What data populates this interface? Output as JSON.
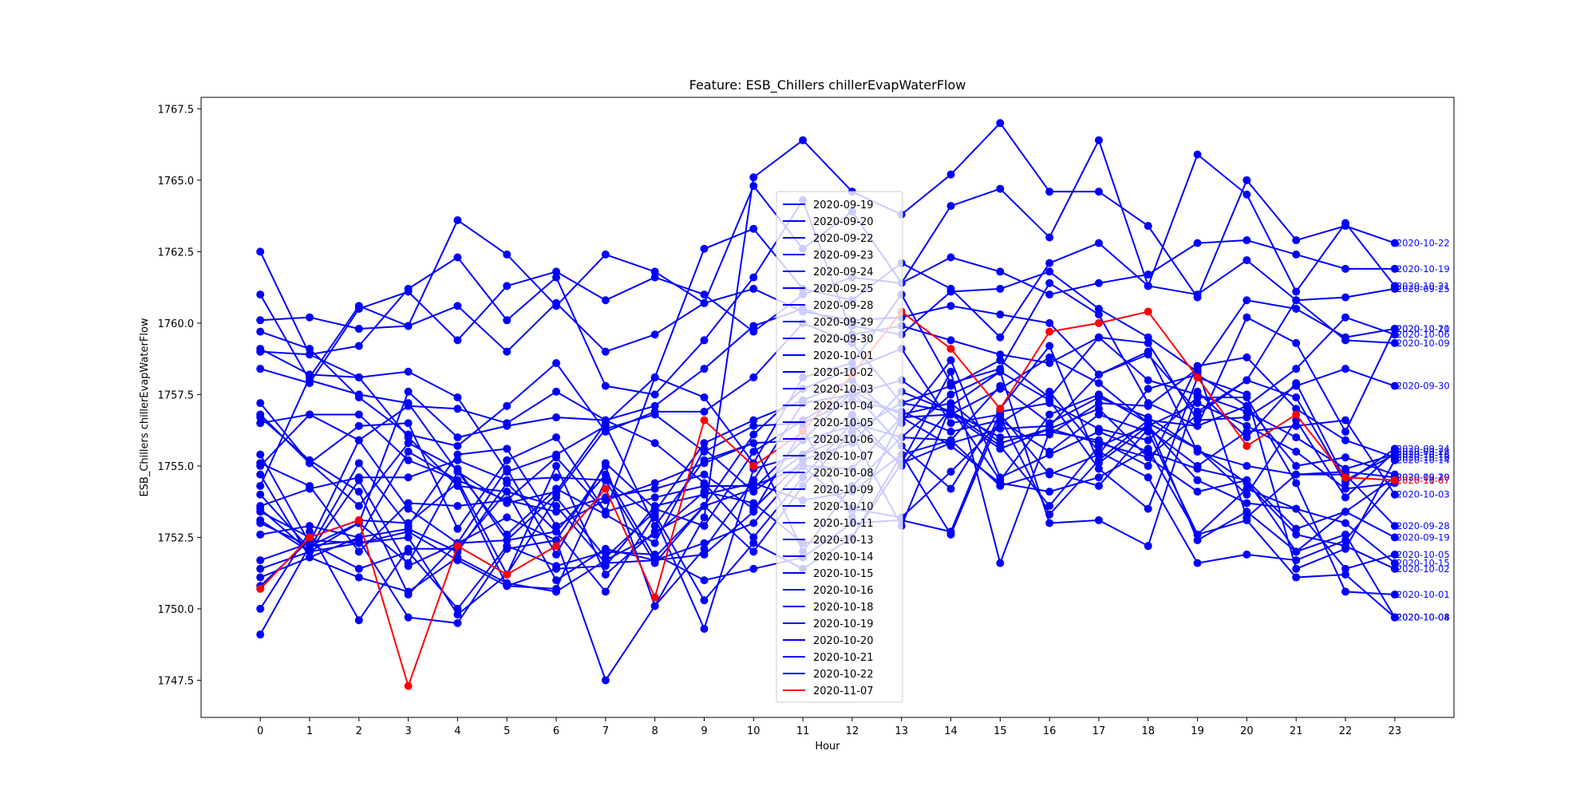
{
  "chart_data": {
    "type": "line",
    "title": "Feature: ESB_Chillers chillerEvapWaterFlow",
    "xlabel": "Hour",
    "ylabel": "ESB_Chillers chillerEvapWaterFlow",
    "x": [
      0,
      1,
      2,
      3,
      4,
      5,
      6,
      7,
      8,
      9,
      10,
      11,
      12,
      13,
      14,
      15,
      16,
      17,
      18,
      19,
      20,
      21,
      22,
      23
    ],
    "xlim": [
      -1.2,
      24.2
    ],
    "ylim": [
      1746.2,
      1767.9
    ],
    "yticks": [
      1747.5,
      1750.0,
      1752.5,
      1755.0,
      1757.5,
      1760.0,
      1762.5,
      1765.0,
      1767.5
    ],
    "ytick_labels": [
      "1747.5",
      "1750.0",
      "1752.5",
      "1755.0",
      "1757.5",
      "1760.0",
      "1762.5",
      "1765.0",
      "1767.5"
    ],
    "grid": false,
    "legend_position": "center",
    "series": [
      {
        "name": "2020-09-19",
        "color": "#0000ff",
        "values": [
          1753.0,
          1752.2,
          1753.0,
          1751.6,
          1754.8,
          1752.6,
          1754.2,
          1753.3,
          1752.3,
          1755.6,
          1754.1,
          1755.4,
          1756.8,
          1755.0,
          1757.0,
          1754.5,
          1756.8,
          1757.5,
          1756.5,
          1752.4,
          1753.4,
          1752.0,
          1753.4,
          1752.5
        ]
      },
      {
        "name": "2020-09-20",
        "color": "#0000ff",
        "values": [
          1753.5,
          1752.0,
          1754.5,
          1751.5,
          1752.3,
          1754.9,
          1751.9,
          1755.1,
          1753.5,
          1752.9,
          1755.5,
          1756.6,
          1757.6,
          1755.7,
          1754.2,
          1757.0,
          1759.2,
          1755.1,
          1756.4,
          1757.2,
          1756.4,
          1755.5,
          1754.2,
          1754.4
        ]
      },
      {
        "name": "2020-09-22",
        "color": "#0000ff",
        "values": [
          1755.4,
          1752.3,
          1755.9,
          1753.5,
          1752.3,
          1753.2,
          1752.4,
          1755.0,
          1750.1,
          1752.1,
          1754.5,
          1757.2,
          1757.5,
          1758.0,
          1756.8,
          1757.7,
          1758.8,
          1757.9,
          1756.5,
          1755.6,
          1754.0,
          1756.6,
          1753.9,
          1755.5
        ]
      },
      {
        "name": "2020-09-23",
        "color": "#0000ff",
        "values": [
          1753.4,
          1752.5,
          1753.1,
          1753.0,
          1754.4,
          1750.8,
          1750.7,
          1754.5,
          1751.6,
          1753.6,
          1756.1,
          1757.7,
          1758.4,
          1759.1,
          1756.5,
          1756.8,
          1754.7,
          1755.4,
          1757.7,
          1758.2,
          1757.1,
          1755.0,
          1755.3,
          1754.7
        ]
      },
      {
        "name": "2020-09-24",
        "color": "#0000ff",
        "values": [
          1754.0,
          1752.1,
          1755.1,
          1752.9,
          1755.4,
          1755.6,
          1752.9,
          1753.8,
          1754.4,
          1755.1,
          1755.8,
          1755.9,
          1757.6,
          1756.8,
          1757.2,
          1755.8,
          1756.3,
          1757.0,
          1755.3,
          1756.8,
          1758.0,
          1757.4,
          1754.4,
          1755.6
        ]
      },
      {
        "name": "2020-09-25",
        "color": "#0000ff",
        "values": [
          1761.0,
          1758.0,
          1757.5,
          1757.2,
          1754.8,
          1753.7,
          1754.1,
          1756.5,
          1758.1,
          1762.6,
          1763.3,
          1761.2,
          1760.8,
          1762.1,
          1761.2,
          1759.5,
          1762.1,
          1762.8,
          1761.3,
          1761.0,
          1762.2,
          1760.8,
          1760.9,
          1761.2
        ]
      },
      {
        "name": "2020-09-28",
        "color": "#0000ff",
        "values": [
          1752.6,
          1752.9,
          1752.5,
          1752.8,
          1752.0,
          1754.4,
          1752.7,
          1754.7,
          1751.8,
          1753.6,
          1754.2,
          1755.9,
          1756.4,
          1755.1,
          1755.8,
          1756.3,
          1756.4,
          1758.2,
          1759.0,
          1755.5,
          1755.0,
          1754.7,
          1754.7,
          1752.9
        ]
      },
      {
        "name": "2020-09-29",
        "color": "#0000ff",
        "values": [
          1754.7,
          1751.8,
          1752.5,
          1755.5,
          1754.5,
          1751.2,
          1753.9,
          1751.8,
          1753.4,
          1755.8,
          1756.6,
          1757.3,
          1758.0,
          1756.5,
          1758.7,
          1754.6,
          1755.4,
          1756.2,
          1755.5,
          1754.9,
          1754.5,
          1752.8,
          1753.4,
          1754.6
        ]
      },
      {
        "name": "2020-09-30",
        "color": "#0000ff",
        "values": [
          1759.7,
          1759.1,
          1757.4,
          1756.1,
          1755.7,
          1757.1,
          1758.6,
          1756.2,
          1756.9,
          1756.9,
          1758.1,
          1760.0,
          1759.3,
          1757.2,
          1757.8,
          1758.7,
          1757.4,
          1759.5,
          1759.3,
          1756.6,
          1756.7,
          1757.8,
          1758.4,
          1757.8
        ]
      },
      {
        "name": "2020-10-01",
        "color": "#0000ff",
        "values": [
          1751.7,
          1752.3,
          1751.4,
          1752.0,
          1750.0,
          1752.2,
          1751.5,
          1752.0,
          1751.9,
          1751.0,
          1751.4,
          1751.8,
          1753.0,
          1753.1,
          1752.7,
          1756.9,
          1757.2,
          1756.3,
          1755.9,
          1757.4,
          1757.4,
          1754.4,
          1750.6,
          1750.5
        ]
      },
      {
        "name": "2020-10-02",
        "color": "#0000ff",
        "values": [
          1751.4,
          1752.0,
          1753.0,
          1757.6,
          1756.0,
          1756.4,
          1756.7,
          1756.6,
          1755.8,
          1754.4,
          1752.5,
          1754.6,
          1756.5,
          1756.0,
          1755.9,
          1757.8,
          1756.5,
          1757.4,
          1756.7,
          1755.6,
          1754.4,
          1752.6,
          1752.2,
          1751.4
        ]
      },
      {
        "name": "2020-10-03",
        "color": "#0000ff",
        "values": [
          1750.8,
          1752.4,
          1752.3,
          1752.7,
          1751.7,
          1750.8,
          1751.4,
          1751.5,
          1753.6,
          1754.0,
          1754.4,
          1753.8,
          1754.1,
          1755.4,
          1755.9,
          1754.3,
          1754.8,
          1754.3,
          1756.3,
          1755.0,
          1756.2,
          1756.4,
          1756.6,
          1754.0
        ]
      },
      {
        "name": "2020-10-04",
        "color": "#0000ff",
        "values": [
          1750.0,
          1752.7,
          1749.6,
          1752.1,
          1752.1,
          1754.1,
          1753.6,
          1751.6,
          1751.7,
          1751.9,
          1753.4,
          1756.3,
          1753.2,
          1756.7,
          1756.8,
          1755.6,
          1756.3,
          1755.8,
          1755.3,
          1754.1,
          1754.5,
          1752.0,
          1752.6,
          1749.7
        ]
      },
      {
        "name": "2020-10-05",
        "color": "#0000ff",
        "values": [
          1753.1,
          1752.0,
          1752.3,
          1752.5,
          1749.8,
          1751.2,
          1755.0,
          1751.2,
          1752.7,
          1753.6,
          1752.0,
          1754.3,
          1756.2,
          1757.2,
          1756.9,
          1755.7,
          1753.6,
          1755.7,
          1756.4,
          1754.5,
          1753.7,
          1753.5,
          1751.4,
          1751.9
        ]
      },
      {
        "name": "2020-10-06",
        "color": "#0000ff",
        "values": [
          1756.8,
          1755.1,
          1756.4,
          1756.5,
          1752.8,
          1755.2,
          1756.0,
          1753.4,
          1758.1,
          1757.4,
          1755.1,
          1758.1,
          1758.6,
          1761.0,
          1757.9,
          1758.4,
          1761.4,
          1760.3,
          1757.2,
          1756.4,
          1757.1,
          1758.4,
          1760.2,
          1759.6
        ]
      },
      {
        "name": "2020-10-07",
        "color": "#0000ff",
        "values": [
          1762.5,
          1758.9,
          1758.1,
          1756.0,
          1754.3,
          1754.1,
          1751.0,
          1752.1,
          1751.7,
          1752.3,
          1753.0,
          1755.0,
          1753.5,
          1753.2,
          1754.8,
          1756.5,
          1757.6,
          1755.5,
          1754.6,
          1751.6,
          1751.9,
          1751.7,
          1752.4,
          1754.5
        ]
      },
      {
        "name": "2020-10-08",
        "color": "#0000ff",
        "values": [
          1756.7,
          1755.2,
          1754.1,
          1750.5,
          1752.3,
          1752.4,
          1754.0,
          1756.3,
          1756.8,
          1755.5,
          1756.4,
          1756.5,
          1757.3,
          1756.9,
          1756.2,
          1756.6,
          1755.5,
          1756.8,
          1756.2,
          1752.6,
          1753.1,
          1751.1,
          1751.2,
          1749.7
        ]
      },
      {
        "name": "2020-10-09",
        "color": "#0000ff",
        "values": [
          1760.1,
          1760.2,
          1759.8,
          1759.9,
          1760.6,
          1759.0,
          1760.7,
          1759.0,
          1759.6,
          1760.7,
          1761.2,
          1760.4,
          1760.1,
          1760.2,
          1760.6,
          1760.3,
          1760.0,
          1758.2,
          1758.9,
          1756.9,
          1758.0,
          1760.8,
          1759.4,
          1759.3
        ]
      },
      {
        "name": "2020-10-10",
        "color": "#0000ff",
        "values": [
          1755.0,
          1756.8,
          1756.8,
          1755.2,
          1754.5,
          1753.8,
          1753.4,
          1753.9,
          1754.2,
          1754.7,
          1753.5,
          1755.2,
          1755.8,
          1757.6,
          1756.9,
          1756.0,
          1756.1,
          1757.2,
          1757.1,
          1758.4,
          1753.2,
          1754.7,
          1754.8,
          1754.6
        ]
      },
      {
        "name": "2020-10-11",
        "color": "#0000ff",
        "values": [
          1751.1,
          1751.8,
          1751.1,
          1750.6,
          1751.8,
          1750.9,
          1750.6,
          1751.7,
          1752.6,
          1754.1,
          1753.7,
          1752.3,
          1752.5,
          1755.4,
          1752.6,
          1756.7,
          1753.3,
          1755.2,
          1756.6,
          1756.4,
          1760.2,
          1759.3,
          1756.2,
          1759.8
        ]
      },
      {
        "name": "2020-10-13",
        "color": "#0000ff",
        "values": [
          1759.1,
          1758.2,
          1758.1,
          1758.3,
          1757.4,
          1754.8,
          1755.4,
          1756.4,
          1752.9,
          1755.2,
          1755.8,
          1752.0,
          1754.3,
          1756.0,
          1757.5,
          1758.3,
          1753.0,
          1753.1,
          1752.2,
          1757.6,
          1756.0,
          1757.9,
          1754.5,
          1755.4
        ]
      },
      {
        "name": "2020-10-14",
        "color": "#0000ff",
        "values": [
          1753.6,
          1754.2,
          1754.6,
          1754.6,
          1755.2,
          1754.5,
          1754.6,
          1754.5,
          1753.2,
          1749.3,
          1754.9,
          1755.4,
          1756.1,
          1752.9,
          1757.1,
          1758.3,
          1757.3,
          1754.9,
          1753.5,
          1758.1,
          1757.5,
          1751.4,
          1752.1,
          1755.2
        ]
      },
      {
        "name": "2020-10-15",
        "color": "#0000ff",
        "values": [
          1755.1,
          1754.3,
          1752.0,
          1753.7,
          1753.6,
          1753.8,
          1755.3,
          1753.4,
          1753.9,
          1754.3,
          1754.3,
          1755.0,
          1754.9,
          1756.7,
          1755.7,
          1754.4,
          1754.1,
          1754.6,
          1755.6,
          1752.6,
          1754.2,
          1753.5,
          1753.0,
          1751.6
        ]
      },
      {
        "name": "2020-10-16",
        "color": "#0000ff",
        "values": [
          1757.2,
          1755.1,
          1753.6,
          1755.8,
          1754.9,
          1752.4,
          1752.7,
          1750.6,
          1753.3,
          1750.3,
          1752.3,
          1751.4,
          1752.5,
          1755.1,
          1758.3,
          1751.6,
          1756.2,
          1755.9,
          1755.0,
          1758.5,
          1758.8,
          1757.0,
          1755.9,
          1755.3
        ]
      },
      {
        "name": "2020-10-18",
        "color": "#0000ff",
        "values": [
          1759.0,
          1758.9,
          1759.2,
          1761.2,
          1762.3,
          1760.1,
          1761.6,
          1757.8,
          1757.5,
          1759.4,
          1761.6,
          1764.3,
          1759.6,
          1759.9,
          1759.4,
          1758.9,
          1758.6,
          1759.5,
          1758.0,
          1757.5,
          1756.9,
          1756.0,
          1754.9,
          1755.4
        ]
      },
      {
        "name": "2020-10-19",
        "color": "#0000ff",
        "values": [
          1758.4,
          1757.9,
          1760.5,
          1761.1,
          1759.4,
          1761.3,
          1761.8,
          1760.8,
          1761.6,
          1761.0,
          1759.7,
          1761.0,
          1761.6,
          1761.4,
          1762.3,
          1761.8,
          1761.0,
          1761.4,
          1761.7,
          1762.8,
          1762.9,
          1762.4,
          1761.9,
          1761.9
        ]
      },
      {
        "name": "2020-10-20",
        "color": "#0000ff",
        "values": [
          1756.5,
          1756.8,
          1755.9,
          1757.1,
          1757.0,
          1756.5,
          1757.6,
          1756.6,
          1757.1,
          1758.4,
          1759.9,
          1760.5,
          1759.9,
          1759.6,
          1761.1,
          1761.2,
          1761.8,
          1760.5,
          1759.5,
          1758.3,
          1760.8,
          1760.5,
          1759.5,
          1759.8
        ]
      },
      {
        "name": "2020-10-21",
        "color": "#0000ff",
        "values": [
          1754.3,
          1758.1,
          1760.6,
          1759.9,
          1763.6,
          1762.4,
          1760.6,
          1762.4,
          1761.8,
          1760.7,
          1764.8,
          1762.6,
          1763.9,
          1761.4,
          1764.1,
          1764.7,
          1763.0,
          1766.4,
          1761.3,
          1765.9,
          1764.5,
          1761.1,
          1763.5,
          1761.3
        ]
      },
      {
        "name": "2020-10-22",
        "color": "#0000ff",
        "values": [
          1749.1,
          1752.2,
          1752.4,
          1749.7,
          1749.5,
          1752.1,
          1752.4,
          1747.5,
          1750.1,
          1753.2,
          1765.1,
          1766.4,
          1764.6,
          1763.8,
          1765.2,
          1767.0,
          1764.6,
          1764.6,
          1763.4,
          1760.9,
          1765.0,
          1762.9,
          1763.4,
          1762.8
        ]
      },
      {
        "name": "2020-11-07",
        "color": "#ff0000",
        "values": [
          1750.7,
          1752.5,
          1753.1,
          1747.3,
          1752.2,
          1751.2,
          1752.2,
          1754.2,
          1750.4,
          1756.6,
          1755.0,
          1756.2,
          1758.2,
          1760.4,
          1759.1,
          1757.0,
          1759.7,
          1760.0,
          1760.4,
          1758.1,
          1755.7,
          1756.8,
          1754.6,
          1754.5
        ]
      }
    ],
    "end_labels": [
      {
        "text": "2020-10-22",
        "color": "#0000ff"
      },
      {
        "text": "2020-10-19",
        "color": "#0000ff"
      },
      {
        "text": "2020-10-18",
        "color": "#0000ff"
      },
      {
        "text": "2020-10-21",
        "color": "#0000ff"
      },
      {
        "text": "2020-09-25",
        "color": "#0000ff"
      },
      {
        "text": "2020-10-11",
        "color": "#0000ff"
      },
      {
        "text": "2020-10-20",
        "color": "#0000ff"
      },
      {
        "text": "2020-10-06",
        "color": "#0000ff"
      },
      {
        "text": "2020-10-09",
        "color": "#0000ff"
      },
      {
        "text": "2020-09-30",
        "color": "#0000ff"
      },
      {
        "text": "2020-10-07",
        "color": "#0000ff"
      },
      {
        "text": "2020-10-08",
        "color": "#0000ff"
      },
      {
        "text": "2020-10-13",
        "color": "#0000ff"
      },
      {
        "text": "2020-09-24",
        "color": "#0000ff"
      },
      {
        "text": "2020-09-22",
        "color": "#0000ff"
      },
      {
        "text": "2020-10-18",
        "color": "#0000ff"
      },
      {
        "text": "2020-10-16",
        "color": "#0000ff"
      },
      {
        "text": "2020-10-14",
        "color": "#0000ff"
      },
      {
        "text": "2020-09-29",
        "color": "#0000ff"
      },
      {
        "text": "2020-10-10",
        "color": "#0000ff"
      },
      {
        "text": "2020-11-07",
        "color": "#ff0000"
      },
      {
        "text": "2020-10-03",
        "color": "#0000ff"
      },
      {
        "text": "2020-09-28",
        "color": "#0000ff"
      },
      {
        "text": "2020-09-19",
        "color": "#0000ff"
      },
      {
        "text": "2020-10-05",
        "color": "#0000ff"
      },
      {
        "text": "2020-10-15",
        "color": "#0000ff"
      },
      {
        "text": "2020-10-02",
        "color": "#0000ff"
      },
      {
        "text": "2020-10-01",
        "color": "#0000ff"
      },
      {
        "text": "2020-10-04",
        "color": "#0000ff"
      },
      {
        "text": "2020-10-08",
        "color": "#0000ff"
      }
    ]
  }
}
